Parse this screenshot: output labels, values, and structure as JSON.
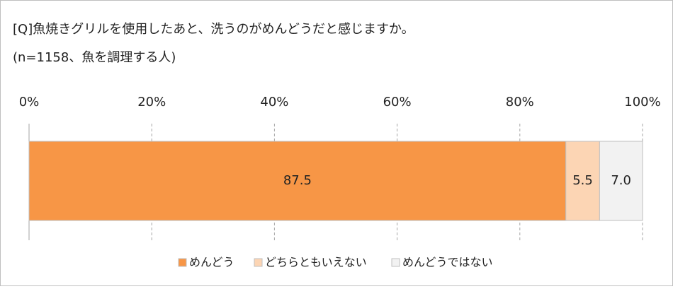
{
  "chart_data": {
    "type": "stacked-bar",
    "title": "[Q]魚焼きグリルを使用したあと、洗うのがめんどうだと感じますか。",
    "subtitle": "(n=1158、魚を調理する人)",
    "categories": [
      null
    ],
    "series": [
      {
        "name": "めんどう",
        "color": "#f79646",
        "values": [
          87.5
        ],
        "value_labels": [
          "87.5"
        ]
      },
      {
        "name": "どちらともいえない",
        "color": "#fcd5b4",
        "values": [
          5.5
        ],
        "value_labels": [
          "5.5"
        ]
      },
      {
        "name": "めんどうではない",
        "color": "#f2f2f2",
        "values": [
          7
        ],
        "value_labels": [
          "7.0"
        ]
      }
    ],
    "xlim": [
      0,
      100
    ],
    "xticks": [
      {
        "value": 0,
        "label": "0%"
      },
      {
        "value": 20,
        "label": "20%"
      },
      {
        "value": 40,
        "label": "40%"
      },
      {
        "value": 60,
        "label": "60%"
      },
      {
        "value": 80,
        "label": "80%"
      },
      {
        "value": 100,
        "label": "100%"
      }
    ],
    "grid": true,
    "legend": "bottom"
  }
}
